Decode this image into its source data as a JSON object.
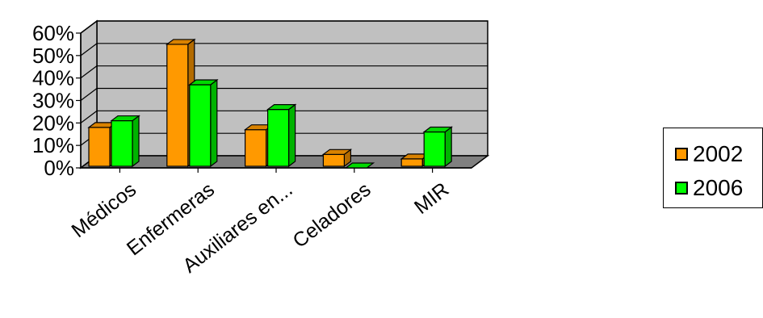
{
  "chart_data": {
    "type": "bar",
    "categories": [
      "Médicos",
      "Enfermeras",
      "Auxiliares en...",
      "Celadores",
      "MIR"
    ],
    "series": [
      {
        "name": "2002",
        "values": [
          18,
          55,
          17,
          6,
          4
        ],
        "color": "#FF9900"
      },
      {
        "name": "2006",
        "values": [
          21,
          37,
          26,
          0,
          16
        ],
        "color": "#00FF00"
      }
    ],
    "yticks": [
      "0%",
      "10%",
      "20%",
      "30%",
      "40%",
      "50%",
      "60%"
    ],
    "ylim": [
      0,
      60
    ],
    "grid": true,
    "wall_color": "#C0C0C0",
    "floor_color": "#808080",
    "legend_position": "right"
  }
}
